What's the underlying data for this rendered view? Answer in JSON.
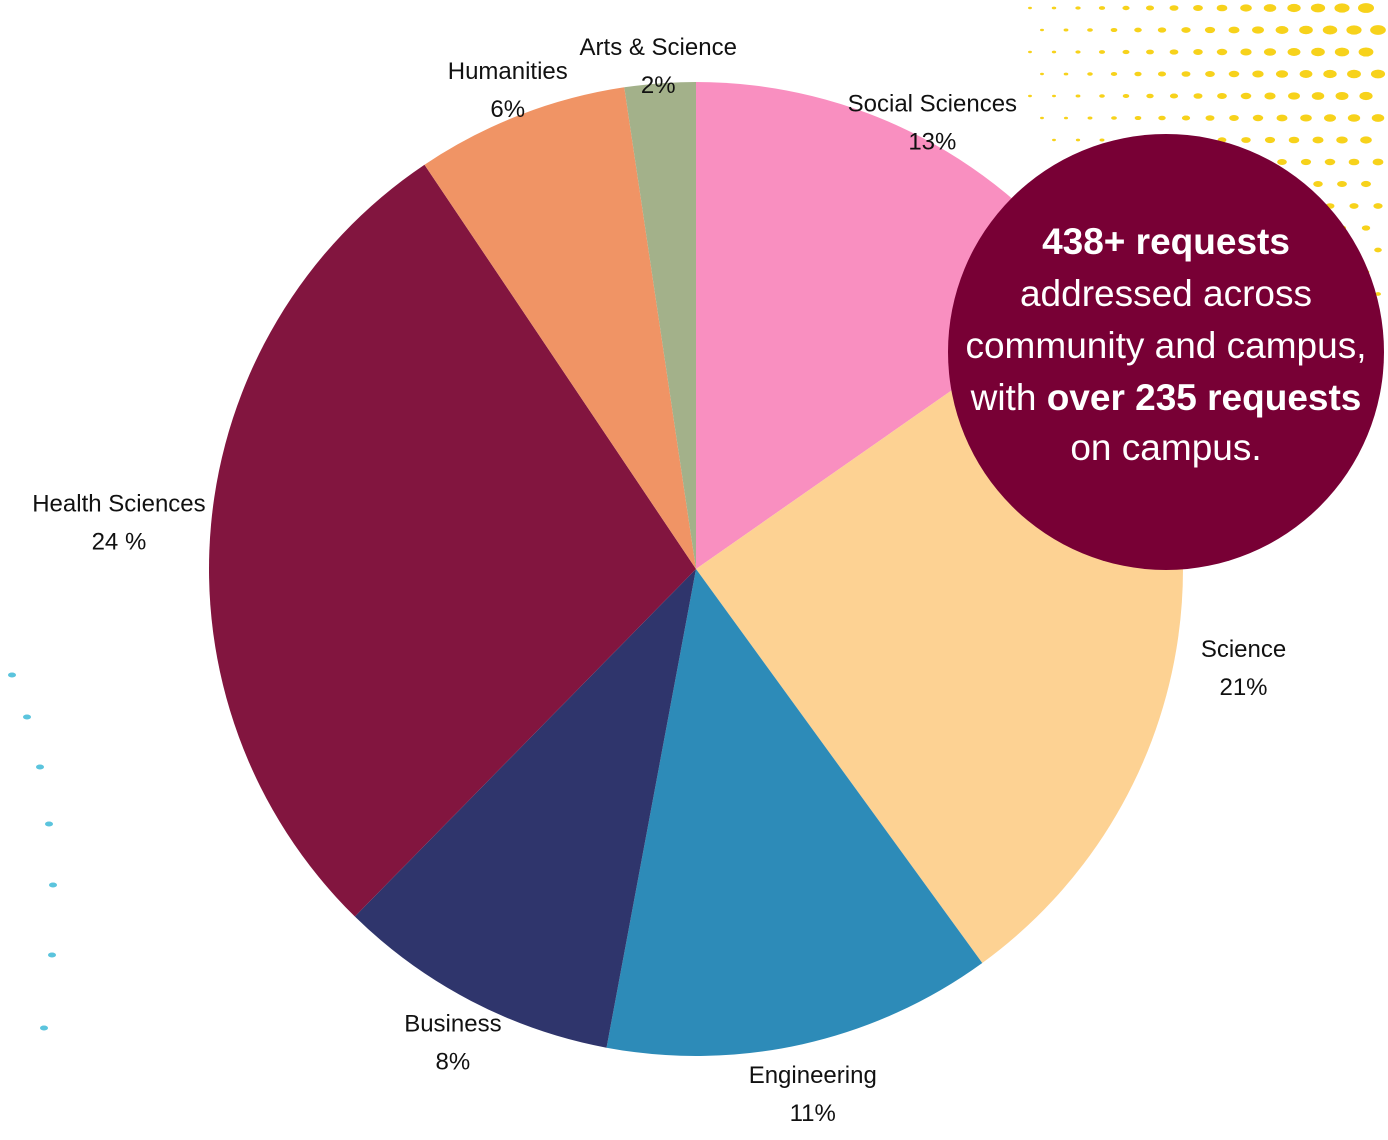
{
  "chart_data": {
    "type": "pie",
    "categories": [
      "Social Sciences",
      "Science",
      "Engineering",
      "Business",
      "Health Sciences",
      "Humanities",
      "Arts & Science"
    ],
    "values": [
      13,
      21,
      11,
      8,
      24,
      6,
      2
    ],
    "value_labels": [
      "13%",
      "21%",
      "11%",
      "8%",
      "24 %",
      "6%",
      "2%"
    ],
    "colors": [
      "#f98fc0",
      "#fdd293",
      "#2d8bb8",
      "#2f356c",
      "#82153f",
      "#f09465",
      "#a3b18a"
    ],
    "start": "top, clockwise"
  },
  "callout": {
    "line1_bold": "438+ requests",
    "line2": "addressed across",
    "line3": "community and campus,",
    "line4_prefix": "with ",
    "line4_bold": "over 235 requests",
    "line5": "on campus.",
    "background_color": "#780035"
  },
  "decor": {
    "dots_top_right_color": "#f7d21b",
    "dots_left_color": "#5bc4dd"
  }
}
